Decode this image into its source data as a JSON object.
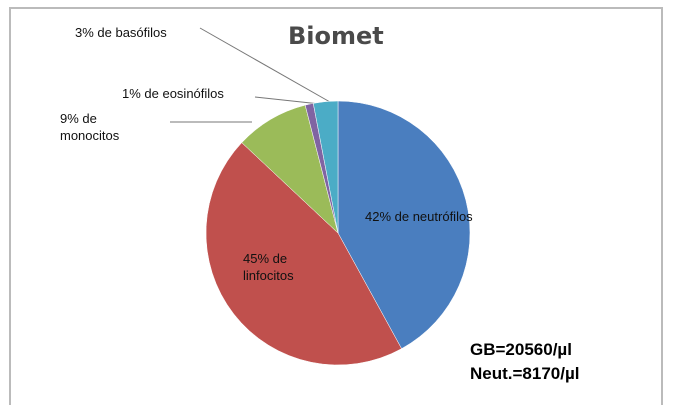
{
  "chart_data": {
    "type": "pie",
    "title": "Biomet",
    "values": [
      42,
      45,
      9,
      1,
      3
    ],
    "value_labels": [
      "42% de neutrófilos",
      "45% de linfocitos",
      "9% de monocitos",
      "1% de eosinófilos",
      "3% de basófilos"
    ],
    "colors": [
      "#4a7ebf",
      "#c0504d",
      "#9bbb59",
      "#8064a2",
      "#4bacc6"
    ],
    "annotations": [
      "GB=20560/µl",
      "Neut.=8170/µl"
    ]
  }
}
